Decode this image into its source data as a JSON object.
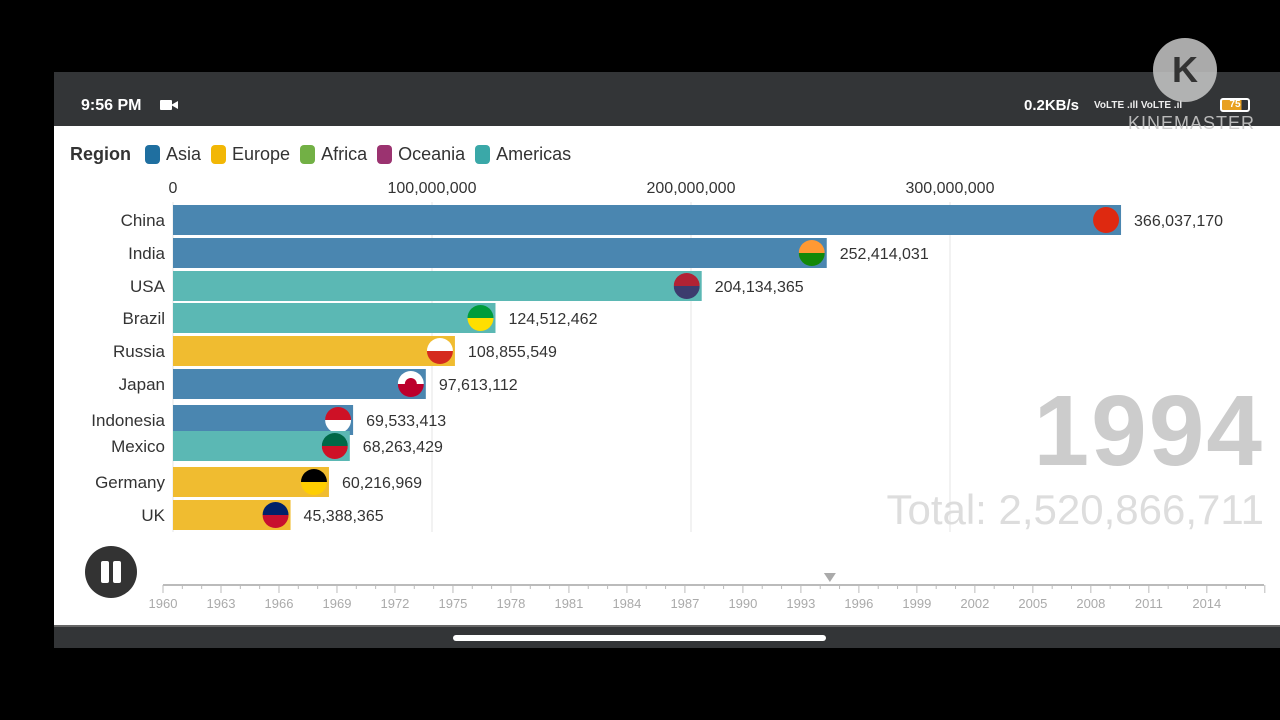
{
  "status": {
    "time": "9:56 PM",
    "net_speed": "0.2KB/s",
    "signal": "VoLTE .ıll VoLTE .ıl",
    "battery": "75"
  },
  "watermark": {
    "logo": "K",
    "text": "KINEMASTER"
  },
  "controls": {
    "pause_icon": "pause-icon"
  },
  "chart_data": {
    "type": "bar",
    "legend_title": "Region",
    "legend": [
      {
        "name": "Asia",
        "color": "#1f6fa0"
      },
      {
        "name": "Europe",
        "color": "#f2b705"
      },
      {
        "name": "Africa",
        "color": "#72b045"
      },
      {
        "name": "Oceania",
        "color": "#9b3370"
      },
      {
        "name": "Americas",
        "color": "#3aa8a8"
      }
    ],
    "bar_colors": {
      "Asia": "#4a86b0",
      "Europe": "#f0bc30",
      "Americas": "#5bb8b4"
    },
    "xlim": [
      0,
      366037170
    ],
    "x_ticks": [
      0,
      100000000,
      200000000,
      300000000
    ],
    "x_tick_labels": [
      "0",
      "100,000,000",
      "200,000,000",
      "300,000,000"
    ],
    "grid": true,
    "bars": [
      {
        "name": "China",
        "region": "Asia",
        "value": 366037170,
        "label": "366,037,170",
        "flag": "china"
      },
      {
        "name": "India",
        "region": "Asia",
        "value": 252414031,
        "label": "252,414,031",
        "flag": "india"
      },
      {
        "name": "USA",
        "region": "Americas",
        "value": 204134365,
        "label": "204,134,365",
        "flag": "usa"
      },
      {
        "name": "Brazil",
        "region": "Americas",
        "value": 124512462,
        "label": "124,512,462",
        "flag": "brazil"
      },
      {
        "name": "Russia",
        "region": "Europe",
        "value": 108855549,
        "label": "108,855,549",
        "flag": "russia"
      },
      {
        "name": "Japan",
        "region": "Asia",
        "value": 97613112,
        "label": "97,613,112",
        "flag": "japan"
      },
      {
        "name": "Indonesia",
        "region": "Asia",
        "value": 69533413,
        "label": "69,533,413",
        "flag": "indonesia"
      },
      {
        "name": "Mexico",
        "region": "Americas",
        "value": 68263429,
        "label": "68,263,429",
        "flag": "mexico"
      },
      {
        "name": "Germany",
        "region": "Europe",
        "value": 60216969,
        "label": "60,216,969",
        "flag": "germany"
      },
      {
        "name": "UK",
        "region": "Europe",
        "value": 45388365,
        "label": "45,388,365",
        "flag": "uk"
      }
    ],
    "year": "1994",
    "total": "Total: 2,520,866,711",
    "timeline": {
      "start": 1960,
      "end": 2017,
      "current": 1994.5,
      "labels": [
        "1960",
        "1963",
        "1966",
        "1969",
        "1972",
        "1975",
        "1978",
        "1981",
        "1984",
        "1987",
        "1990",
        "1993",
        "1996",
        "1999",
        "2002",
        "2005",
        "2008",
        "2011",
        "2014"
      ]
    }
  }
}
